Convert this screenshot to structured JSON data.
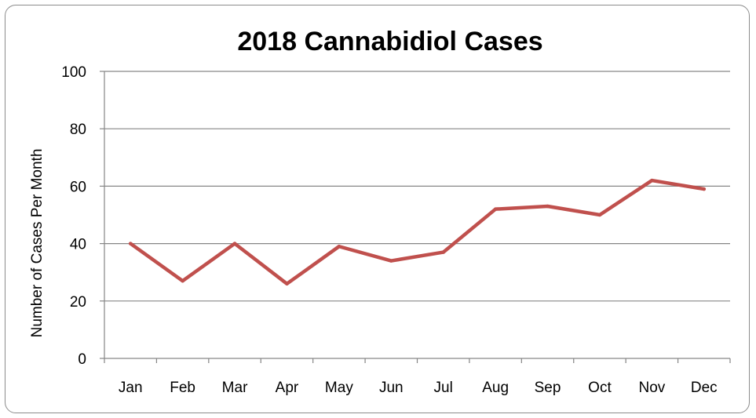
{
  "chart_data": {
    "type": "line",
    "title": "2018 Cannabidiol Cases",
    "xlabel": "",
    "ylabel": "Number of Cases Per Month",
    "categories": [
      "Jan",
      "Feb",
      "Mar",
      "Apr",
      "May",
      "Jun",
      "Jul",
      "Aug",
      "Sep",
      "Oct",
      "Nov",
      "Dec"
    ],
    "series": [
      {
        "values": [
          40,
          27,
          40,
          26,
          39,
          34,
          37,
          52,
          53,
          50,
          62,
          59
        ]
      }
    ],
    "ylim": [
      0,
      100
    ],
    "yticks": [
      0,
      20,
      40,
      60,
      80,
      100
    ],
    "grid": true,
    "legend": "none",
    "colors": {
      "line": "#c0504d",
      "grid": "#868686",
      "frame": "#8c8c8c"
    }
  }
}
